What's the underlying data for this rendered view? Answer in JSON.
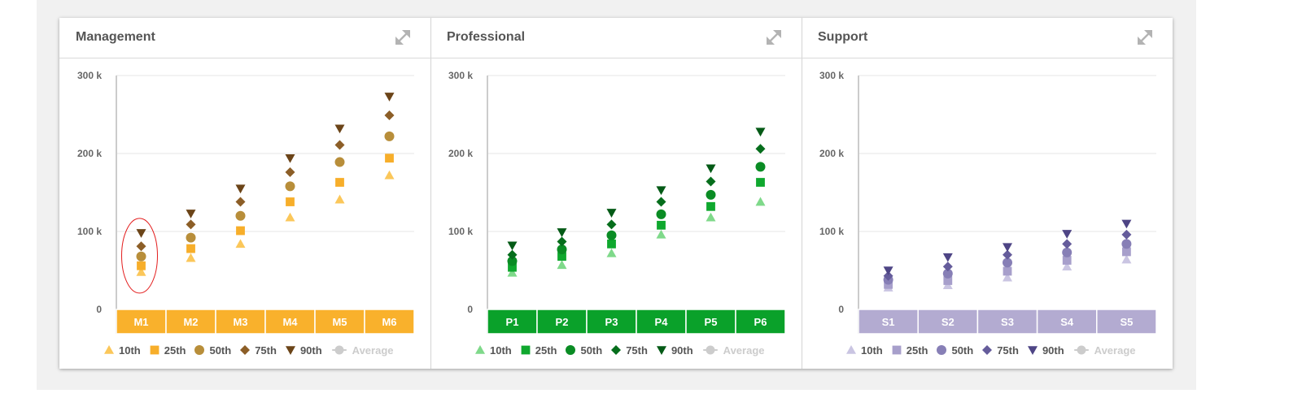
{
  "chart_data": [
    {
      "type": "scatter",
      "title": "Management",
      "categories": [
        "M1",
        "M2",
        "M3",
        "M4",
        "M5",
        "M6"
      ],
      "ylim": [
        0,
        300000
      ],
      "y_ticks": [
        "0",
        "100 k",
        "200 k",
        "300 k"
      ],
      "y_tick_values": [
        0,
        100000,
        200000,
        300000
      ],
      "grid": true,
      "legend_position": "bottom",
      "colors": {
        "10th": "#fbc75a",
        "25th": "#f7ae2a",
        "50th": "#b88e3a",
        "75th": "#8c5e27",
        "90th": "#6b4418",
        "Average": "#cccccc",
        "band": "#f9b12c"
      },
      "series": [
        {
          "name": "10th",
          "marker": "triangle",
          "values": [
            48000,
            66000,
            84000,
            118000,
            141000,
            172000
          ]
        },
        {
          "name": "25th",
          "marker": "square",
          "values": [
            56000,
            78000,
            101000,
            138000,
            163000,
            194000
          ]
        },
        {
          "name": "50th",
          "marker": "circle",
          "values": [
            68000,
            92000,
            120000,
            158000,
            189000,
            222000
          ]
        },
        {
          "name": "75th",
          "marker": "diamond",
          "values": [
            81000,
            109000,
            138000,
            176000,
            211000,
            249000
          ]
        },
        {
          "name": "90th",
          "marker": "triangle-down",
          "values": [
            98000,
            123000,
            155000,
            194000,
            232000,
            273000
          ]
        },
        {
          "name": "Average",
          "marker": "line-circle",
          "values": []
        }
      ],
      "annotation": {
        "type": "ellipse",
        "category": "M1",
        "color": "#e31d1d"
      }
    },
    {
      "type": "scatter",
      "title": "Professional",
      "categories": [
        "P1",
        "P2",
        "P3",
        "P4",
        "P5",
        "P6"
      ],
      "ylim": [
        0,
        300000
      ],
      "y_ticks": [
        "0",
        "100 k",
        "200 k",
        "300 k"
      ],
      "y_tick_values": [
        0,
        100000,
        200000,
        300000
      ],
      "grid": true,
      "legend_position": "bottom",
      "colors": {
        "10th": "#7fd98a",
        "25th": "#0fa82e",
        "50th": "#0a8c24",
        "75th": "#066e1c",
        "90th": "#045a16",
        "Average": "#cccccc",
        "band": "#0aa12a"
      },
      "series": [
        {
          "name": "10th",
          "marker": "triangle",
          "values": [
            47000,
            57000,
            72000,
            96000,
            118000,
            138000
          ]
        },
        {
          "name": "25th",
          "marker": "square",
          "values": [
            54000,
            68000,
            84000,
            108000,
            132000,
            163000
          ]
        },
        {
          "name": "50th",
          "marker": "circle",
          "values": [
            62000,
            77000,
            95000,
            122000,
            147000,
            183000
          ]
        },
        {
          "name": "75th",
          "marker": "diamond",
          "values": [
            70000,
            87000,
            109000,
            138000,
            164000,
            206000
          ]
        },
        {
          "name": "90th",
          "marker": "triangle-down",
          "values": [
            82000,
            99000,
            124000,
            153000,
            181000,
            228000
          ]
        },
        {
          "name": "Average",
          "marker": "line-circle",
          "values": []
        }
      ]
    },
    {
      "type": "scatter",
      "title": "Support",
      "categories": [
        "S1",
        "S2",
        "S3",
        "S4",
        "S5"
      ],
      "ylim": [
        0,
        300000
      ],
      "y_ticks": [
        "0",
        "100 k",
        "200 k",
        "300 k"
      ],
      "y_tick_values": [
        0,
        100000,
        200000,
        300000
      ],
      "grid": true,
      "legend_position": "bottom",
      "colors": {
        "10th": "#cac5e2",
        "25th": "#a79fcb",
        "50th": "#877fb6",
        "75th": "#655c9b",
        "90th": "#4e4585",
        "Average": "#cccccc",
        "band": "#b3abd1"
      },
      "series": [
        {
          "name": "10th",
          "marker": "triangle",
          "values": [
            28000,
            31000,
            41000,
            55000,
            64000
          ]
        },
        {
          "name": "25th",
          "marker": "square",
          "values": [
            32000,
            37000,
            49000,
            63000,
            74000
          ]
        },
        {
          "name": "50th",
          "marker": "circle",
          "values": [
            38000,
            46000,
            60000,
            73000,
            84000
          ]
        },
        {
          "name": "75th",
          "marker": "diamond",
          "values": [
            43000,
            55000,
            70000,
            84000,
            96000
          ]
        },
        {
          "name": "90th",
          "marker": "triangle-down",
          "values": [
            50000,
            67000,
            80000,
            97000,
            110000
          ]
        },
        {
          "name": "Average",
          "marker": "line-circle",
          "values": []
        }
      ]
    }
  ]
}
